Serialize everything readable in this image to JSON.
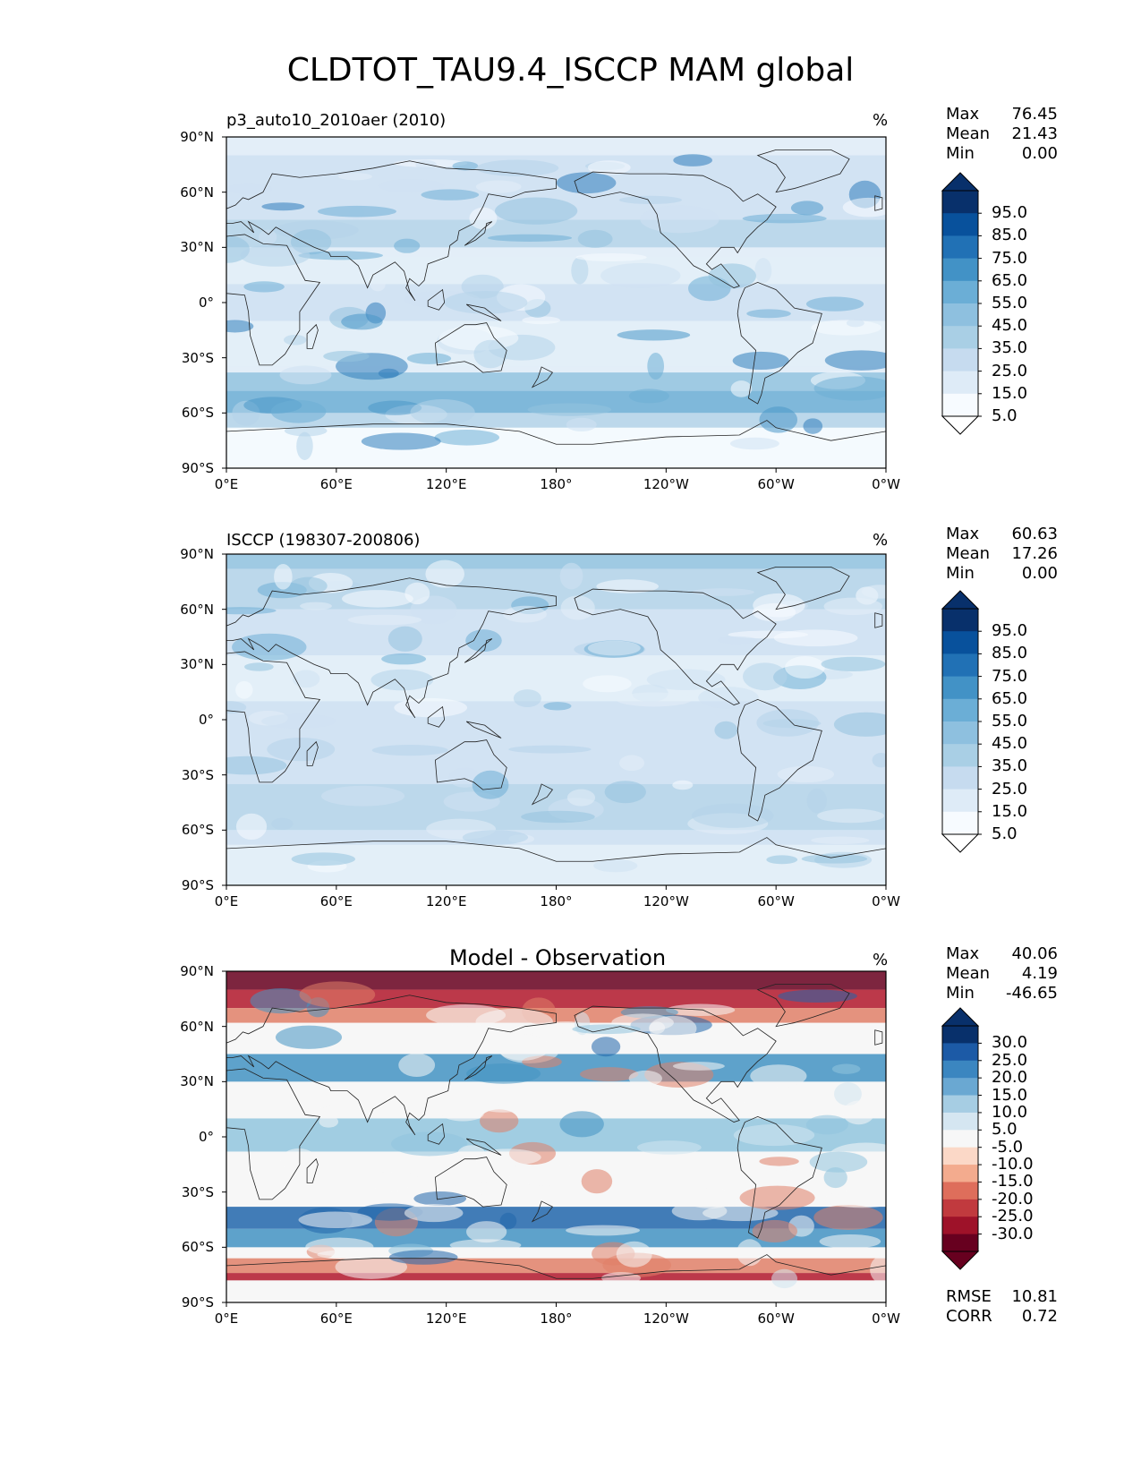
{
  "title": "CLDTOT_TAU9.4_ISCCP MAM global",
  "panels": [
    {
      "id": "model",
      "subtitle": "p3_auto10_2010aer (2010)",
      "center_title": "",
      "unit": "%",
      "stats": [
        {
          "label": "Max",
          "value": "76.45"
        },
        {
          "label": "Mean",
          "value": "21.43"
        },
        {
          "label": "Min",
          "value": "0.00"
        }
      ],
      "colorbar": {
        "labels": [
          "95.0",
          "85.0",
          "75.0",
          "65.0",
          "55.0",
          "45.0",
          "35.0",
          "25.0",
          "15.0",
          "5.0"
        ],
        "colors": [
          "#08306b",
          "#08519c",
          "#2171b5",
          "#4292c6",
          "#6baed6",
          "#8ec0df",
          "#a9cfe5",
          "#c6dbef",
          "#deebf7",
          "#f7fbff"
        ],
        "extend_top": "#08306b",
        "extend_bottom": "#ffffff"
      },
      "map_palette": [
        "#f7fbff",
        "#e3eef8",
        "#cfe1f2",
        "#b5d4e9",
        "#93c3df",
        "#6daed5",
        "#4b97c9",
        "#2f7ebc"
      ]
    },
    {
      "id": "obs",
      "subtitle": "ISCCP (198307-200806)",
      "center_title": "",
      "unit": "%",
      "stats": [
        {
          "label": "Max",
          "value": "60.63"
        },
        {
          "label": "Mean",
          "value": "17.26"
        },
        {
          "label": "Min",
          "value": "0.00"
        }
      ],
      "colorbar": {
        "labels": [
          "95.0",
          "85.0",
          "75.0",
          "65.0",
          "55.0",
          "45.0",
          "35.0",
          "25.0",
          "15.0",
          "5.0"
        ],
        "colors": [
          "#08306b",
          "#08519c",
          "#2171b5",
          "#4292c6",
          "#6baed6",
          "#8ec0df",
          "#a9cfe5",
          "#c6dbef",
          "#deebf7",
          "#f7fbff"
        ],
        "extend_top": "#08306b",
        "extend_bottom": "#ffffff"
      },
      "map_palette": [
        "#f7fbff",
        "#e3eef8",
        "#cfe1f2",
        "#b5d4e9",
        "#93c3df",
        "#6daed5"
      ]
    },
    {
      "id": "diff",
      "subtitle": "",
      "center_title": "Model - Observation",
      "unit": "%",
      "stats": [
        {
          "label": "Max",
          "value": "40.06"
        },
        {
          "label": "Mean",
          "value": "4.19"
        },
        {
          "label": "Min",
          "value": "-46.65"
        }
      ],
      "colorbar": {
        "labels": [
          "30.0",
          "25.0",
          "20.0",
          "15.0",
          "10.0",
          "5.0",
          "-5.0",
          "-10.0",
          "-15.0",
          "-20.0",
          "-25.0",
          "-30.0"
        ],
        "colors": [
          "#08306b",
          "#1c5aa6",
          "#3b86c0",
          "#6aa8d2",
          "#a6cde3",
          "#d5e6f1",
          "#f7f7f7",
          "#fbd8c7",
          "#f3ab8e",
          "#de6e5b",
          "#c13a3e",
          "#9e1229",
          "#67001f"
        ],
        "extend_top": "#08306b",
        "extend_bottom": "#67001f"
      },
      "map_palette": [
        "#67001f",
        "#b2182b",
        "#e08068",
        "#f7f7f7",
        "#d1e5f0",
        "#92c5de",
        "#4393c3",
        "#2166ac",
        "#08306b"
      ],
      "footer_stats": [
        {
          "label": "RMSE",
          "value": "10.81"
        },
        {
          "label": "CORR",
          "value": "0.72"
        }
      ]
    }
  ],
  "axes": {
    "lat_ticks": [
      "90°N",
      "60°N",
      "30°N",
      "0°",
      "30°S",
      "60°S",
      "90°S"
    ],
    "lon_ticks": [
      "0°E",
      "60°E",
      "120°E",
      "180°",
      "120°W",
      "60°W",
      "0°W"
    ],
    "lat_values": [
      90,
      60,
      30,
      0,
      -30,
      -60,
      -90
    ],
    "lon_values": [
      0,
      60,
      120,
      180,
      240,
      300,
      360
    ]
  }
}
